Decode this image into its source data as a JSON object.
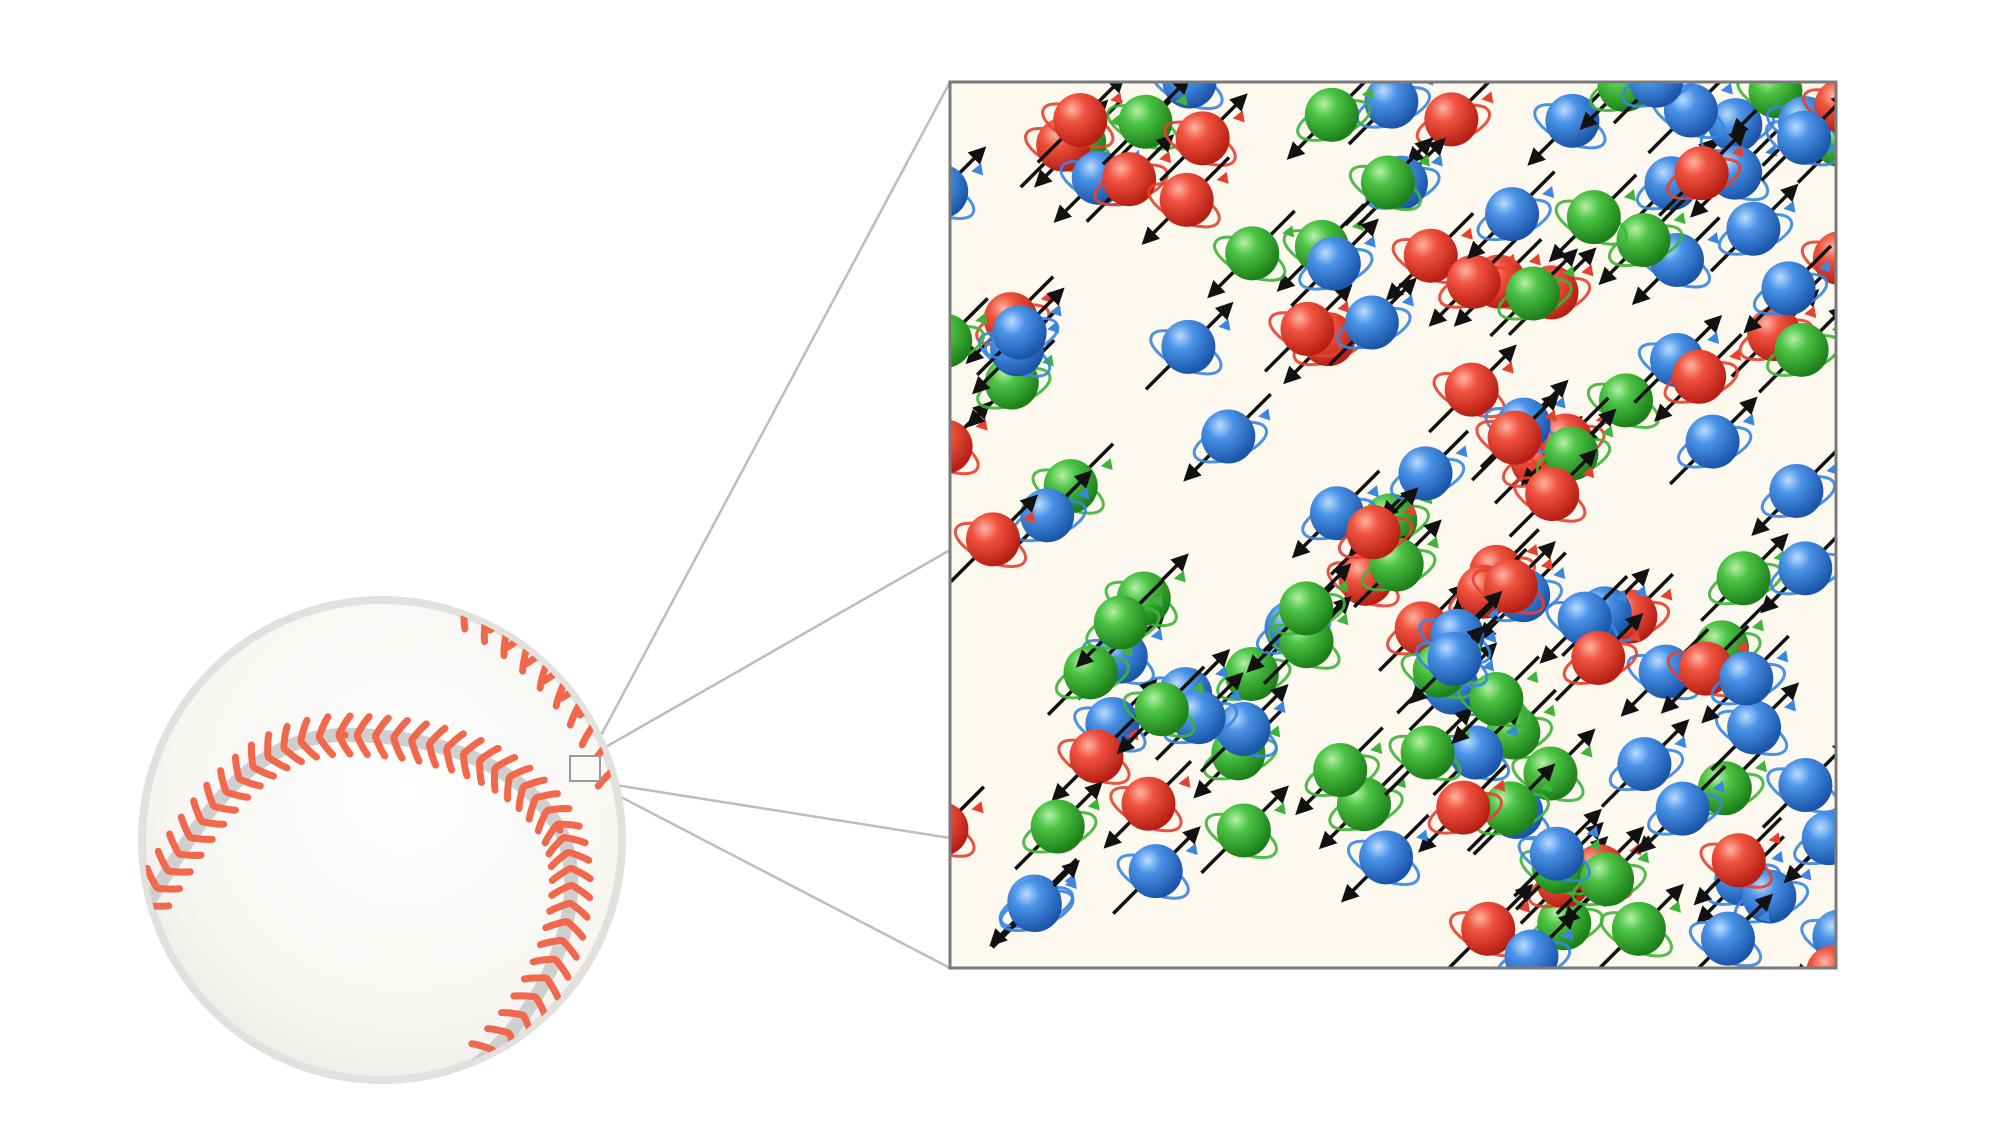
{
  "colors": {
    "background": "#ffffff",
    "baseball_fill": "#fbfaf6",
    "baseball_rim": "#e2e1de",
    "seam_groove": "#cfcfcf",
    "stitch": "#f2684c",
    "panel_fill": "#fdf9ee",
    "panel_border": "#7a7a7a",
    "zoom_lines": "#bdbdbd",
    "red_particle": "#e8402f",
    "green_particle": "#3fb43a",
    "blue_particle": "#3a86e0",
    "spin_arrow": "#111111"
  },
  "icons": {
    "baseball": "baseball-icon",
    "magnify_box": "zoom-selection-box",
    "particle": "spinning-particle-icon",
    "spin": "spin-arrow-icon"
  },
  "particles": {
    "kinds": [
      "red",
      "green",
      "blue"
    ]
  }
}
